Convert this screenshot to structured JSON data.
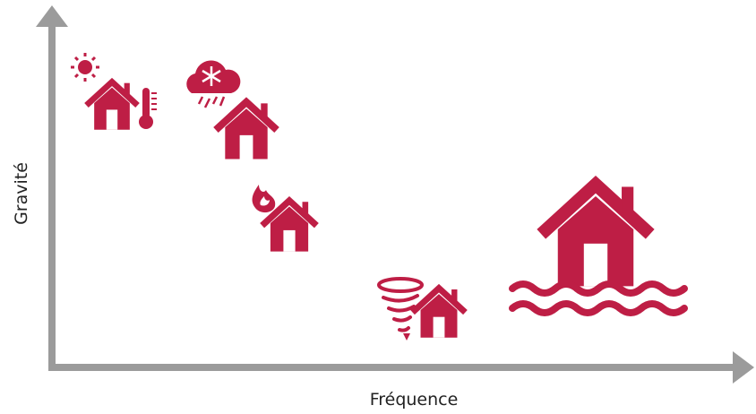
{
  "axes": {
    "y_label": "Gravité",
    "x_label": "Fréquence"
  }
}
